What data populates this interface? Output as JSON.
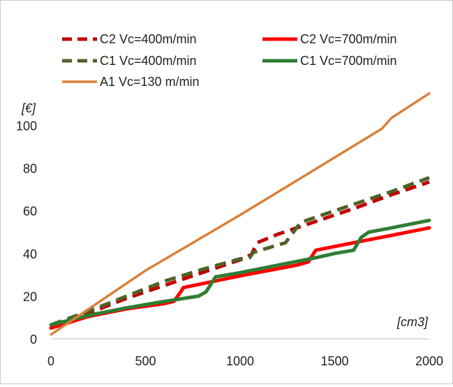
{
  "chart_data": {
    "type": "line",
    "title": "",
    "xlabel": "[cm3]",
    "ylabel": "[€]",
    "xlim": [
      0,
      2000
    ],
    "ylim": [
      0,
      110
    ],
    "xticks": [
      0,
      500,
      1000,
      1500,
      2000
    ],
    "yticks": [
      0,
      20,
      40,
      60,
      80,
      100
    ],
    "grid": false,
    "legend": "top",
    "series": [
      {
        "name": "C2 Vc=400m/min",
        "color": "#c00000",
        "style": "dashed",
        "x": [
          0,
          200,
          400,
          600,
          800,
          1000,
          1060,
          1090,
          1200,
          1400,
          1600,
          1800,
          2000
        ],
        "y": [
          5.5,
          12,
          19,
          25,
          31,
          37,
          39.5,
          45,
          49,
          55,
          61,
          67.5,
          73.5
        ]
      },
      {
        "name": "C2 Vc=700m/min",
        "color": "#ff0000",
        "style": "solid",
        "x": [
          0,
          200,
          400,
          600,
          650,
          690,
          700,
          1000,
          1300,
          1360,
          1400,
          1600,
          1800,
          2000
        ],
        "y": [
          5,
          10.5,
          14,
          16.5,
          17.5,
          22.5,
          24,
          29.5,
          34.5,
          36,
          41.5,
          45,
          48.5,
          52
        ]
      },
      {
        "name": "C1 Vc=400m/min",
        "color": "#4f6228",
        "style": "dashed",
        "x": [
          0,
          200,
          400,
          600,
          800,
          1000,
          1050,
          1070,
          1200,
          1240,
          1320,
          1400,
          1600,
          1800,
          2000
        ],
        "y": [
          6.5,
          13,
          20,
          27,
          32.5,
          37.5,
          38,
          40.5,
          44,
          45,
          54.5,
          57,
          63,
          69,
          75.5
        ]
      },
      {
        "name": "C1 Vc=700m/min",
        "color": "#2e7d32",
        "style": "solid",
        "x": [
          0,
          200,
          400,
          600,
          780,
          820,
          870,
          1000,
          1200,
          1400,
          1500,
          1600,
          1640,
          1680,
          1800,
          2000
        ],
        "y": [
          6.5,
          11,
          14.5,
          17.5,
          20,
          22,
          29,
          31,
          34.5,
          38,
          40,
          41.5,
          47.5,
          50,
          52,
          55.5
        ]
      },
      {
        "name": "A1 Vc=130 m/min",
        "color": "#d9803a",
        "style": "solid",
        "x": [
          0,
          500,
          1000,
          1500,
          1750,
          1800,
          2000
        ],
        "y": [
          2,
          32,
          58,
          85,
          98.5,
          103.5,
          115
        ]
      }
    ]
  }
}
